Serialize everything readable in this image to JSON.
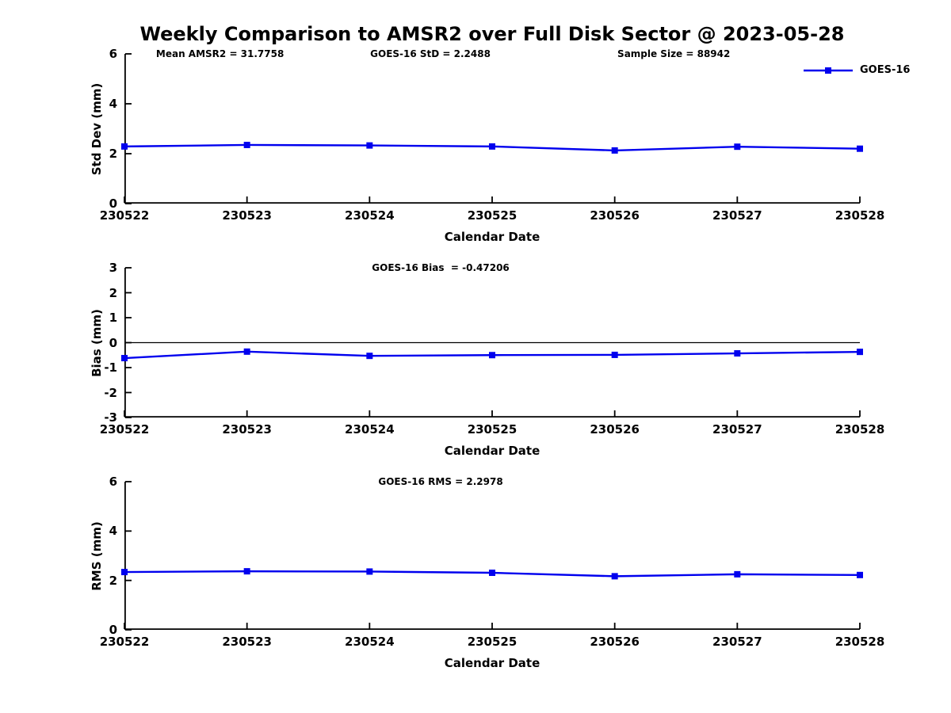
{
  "title": "Weekly Comparison to AMSR2 over Full Disk Sector @ 2023-05-28",
  "legend": {
    "label": "GOES-16"
  },
  "colors": {
    "series_line": "#0000ee",
    "axis": "#000000",
    "text": "#000000",
    "background": "#ffffff"
  },
  "chart_data": [
    {
      "id": "std-dev",
      "type": "line",
      "ylabel": "Std Dev (mm)",
      "xlabel": "Calendar Date",
      "ylim": [
        0,
        6
      ],
      "yticks": [
        0,
        2,
        4,
        6
      ],
      "categories": [
        "230522",
        "230523",
        "230524",
        "230525",
        "230526",
        "230527",
        "230528"
      ],
      "series": [
        {
          "name": "GOES-16",
          "marker": "square",
          "values": [
            2.29,
            2.35,
            2.33,
            2.29,
            2.13,
            2.28,
            2.2
          ]
        }
      ],
      "annotations": [
        "Mean AMSR2 = 31.7758",
        "GOES-16 StD = 2.2488",
        "Sample Size = 88942"
      ],
      "legend_position": "top-right",
      "grid": false,
      "zero_line": false
    },
    {
      "id": "bias",
      "type": "line",
      "ylabel": "Bias (mm)",
      "xlabel": "Calendar Date",
      "ylim": [
        -3,
        3
      ],
      "yticks": [
        -3,
        -2,
        -1,
        0,
        1,
        2,
        3
      ],
      "categories": [
        "230522",
        "230523",
        "230524",
        "230525",
        "230526",
        "230527",
        "230528"
      ],
      "series": [
        {
          "name": "GOES-16",
          "marker": "square",
          "values": [
            -0.62,
            -0.36,
            -0.53,
            -0.5,
            -0.49,
            -0.43,
            -0.37
          ]
        }
      ],
      "annotations": [
        "GOES-16 Bias  = -0.47206"
      ],
      "grid": false,
      "zero_line": true
    },
    {
      "id": "rms",
      "type": "line",
      "ylabel": "RMS (mm)",
      "xlabel": "Calendar Date",
      "ylim": [
        0,
        6
      ],
      "yticks": [
        0,
        2,
        4,
        6
      ],
      "categories": [
        "230522",
        "230523",
        "230524",
        "230525",
        "230526",
        "230527",
        "230528"
      ],
      "series": [
        {
          "name": "GOES-16",
          "marker": "square",
          "values": [
            2.34,
            2.37,
            2.36,
            2.31,
            2.17,
            2.25,
            2.22
          ]
        }
      ],
      "annotations": [
        "GOES-16 RMS = 2.2978"
      ],
      "grid": false,
      "zero_line": false
    }
  ]
}
